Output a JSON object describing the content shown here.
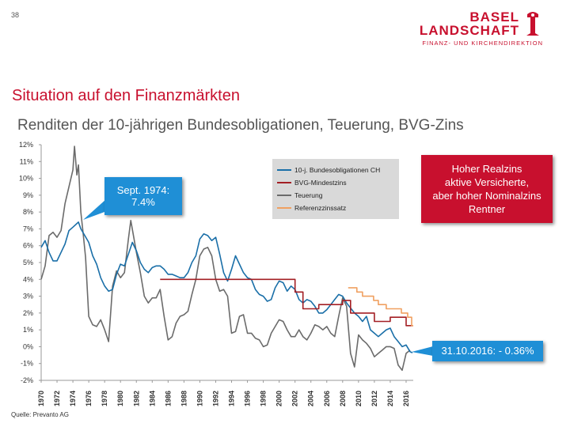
{
  "page_number": "38",
  "logo": {
    "line1": "BASEL",
    "line2": "LANDSCHAFT",
    "sub": "FINANZ- UND KIRCHENDIREKTION"
  },
  "slide_title": "Situation auf den Finanzmärkten",
  "source": "Quelle: Prevanto AG",
  "colors": {
    "brand_red": "#c8102e",
    "callout_blue": "#1f8fd6",
    "bond": "#1a6fa8",
    "bvg": "#a31f24",
    "inflation": "#6b6b6b",
    "reference": "#f0a060"
  },
  "callouts": {
    "sept_line1": "Sept. 1974:",
    "sept_line2": "7.4%",
    "real_lines": [
      "Hoher Realzins",
      "aktive Versicherte,",
      "aber hoher Nominalzins",
      "Rentner"
    ],
    "date": "31.10.2016: - 0.36%"
  },
  "chart_data": {
    "type": "line",
    "title": "Renditen der 10-jährigen Bundesobligationen, Teuerung, BVG-Zins",
    "ylim": [
      -2,
      12
    ],
    "xlim": [
      1970,
      2016.9
    ],
    "y_ticks": [
      "12%",
      "11%",
      "10%",
      "9%",
      "8%",
      "7%",
      "6%",
      "5%",
      "4%",
      "3%",
      "2%",
      "1%",
      "0%",
      "-1%",
      "-2%"
    ],
    "x_ticks": [
      "1970",
      "1972",
      "1974",
      "1976",
      "1978",
      "1980",
      "1982",
      "1984",
      "1986",
      "1988",
      "1990",
      "1992",
      "1994",
      "1996",
      "1998",
      "2000",
      "2002",
      "2004",
      "2006",
      "2008",
      "2010",
      "2012",
      "2014",
      "2016"
    ],
    "legend_position": "top-center",
    "grid": false,
    "series": [
      {
        "name": "10-j. Bundesobligationen CH",
        "x": [
          1970,
          1970.5,
          1971,
          1971.5,
          1972,
          1972.5,
          1973,
          1973.5,
          1974,
          1974.7,
          1975,
          1975.5,
          1976,
          1976.5,
          1977,
          1977.5,
          1978,
          1978.5,
          1979,
          1979.5,
          1980,
          1980.5,
          1981,
          1981.5,
          1982,
          1982.5,
          1983,
          1983.5,
          1984,
          1984.5,
          1985,
          1985.5,
          1986,
          1986.5,
          1987,
          1987.5,
          1988,
          1988.5,
          1989,
          1989.5,
          1990,
          1990.5,
          1991,
          1991.5,
          1992,
          1992.5,
          1993,
          1993.5,
          1994,
          1994.5,
          1995,
          1995.5,
          1996,
          1996.5,
          1997,
          1997.5,
          1998,
          1998.5,
          1999,
          1999.5,
          2000,
          2000.5,
          2001,
          2001.5,
          2002,
          2002.5,
          2003,
          2003.5,
          2004,
          2004.5,
          2005,
          2005.5,
          2006,
          2006.5,
          2007,
          2007.5,
          2008,
          2008.5,
          2009,
          2009.5,
          2010,
          2010.5,
          2011,
          2011.5,
          2012,
          2012.5,
          2013,
          2013.5,
          2014,
          2014.5,
          2015,
          2015.5,
          2016,
          2016.5,
          2016.8
        ],
        "y": [
          5.9,
          6.3,
          5.6,
          5.1,
          5.1,
          5.6,
          6.1,
          6.9,
          7.1,
          7.4,
          7.0,
          6.6,
          6.2,
          5.4,
          4.9,
          4.1,
          3.6,
          3.3,
          3.4,
          4.3,
          4.9,
          4.8,
          5.5,
          6.2,
          5.7,
          5.0,
          4.6,
          4.4,
          4.7,
          4.8,
          4.8,
          4.6,
          4.3,
          4.3,
          4.2,
          4.1,
          4.1,
          4.4,
          5.0,
          5.4,
          6.4,
          6.7,
          6.6,
          6.3,
          6.5,
          5.5,
          4.4,
          3.9,
          4.6,
          5.4,
          4.9,
          4.4,
          4.1,
          4.0,
          3.4,
          3.1,
          3.0,
          2.7,
          2.8,
          3.5,
          3.9,
          3.8,
          3.3,
          3.6,
          3.4,
          2.8,
          2.6,
          2.8,
          2.7,
          2.4,
          2.0,
          2.0,
          2.2,
          2.5,
          2.8,
          3.1,
          3.0,
          2.6,
          2.3,
          2.0,
          1.8,
          1.5,
          1.8,
          1.0,
          0.8,
          0.6,
          0.8,
          1.0,
          1.1,
          0.6,
          0.3,
          0.0,
          0.1,
          -0.3,
          -0.36
        ]
      },
      {
        "name": "BVG-Mindestzins",
        "x": [
          1985,
          2002,
          2002,
          2003,
          2003,
          2005,
          2005,
          2008,
          2008,
          2009,
          2009,
          2012,
          2012,
          2014,
          2014,
          2016,
          2016,
          2016.9
        ],
        "y": [
          4.0,
          4.0,
          3.25,
          3.25,
          2.25,
          2.25,
          2.5,
          2.5,
          2.75,
          2.75,
          2.0,
          2.0,
          1.5,
          1.5,
          1.75,
          1.75,
          1.25,
          1.25
        ]
      },
      {
        "name": "Teuerung",
        "x": [
          1970,
          1970.5,
          1971,
          1971.5,
          1972,
          1972.5,
          1973,
          1973.5,
          1974,
          1974.2,
          1974.5,
          1974.7,
          1975,
          1975.3,
          1975.6,
          1976,
          1976.5,
          1977,
          1977.5,
          1978,
          1978.5,
          1979,
          1979.5,
          1980,
          1980.5,
          1981,
          1981.3,
          1981.6,
          1982,
          1982.5,
          1983,
          1983.5,
          1984,
          1984.5,
          1985,
          1985.5,
          1986,
          1986.5,
          1987,
          1987.5,
          1988,
          1988.5,
          1989,
          1989.5,
          1990,
          1990.5,
          1991,
          1991.5,
          1992,
          1992.5,
          1993,
          1993.5,
          1994,
          1994.5,
          1995,
          1995.5,
          1996,
          1996.5,
          1997,
          1997.5,
          1998,
          1998.5,
          1999,
          1999.5,
          2000,
          2000.5,
          2001,
          2001.5,
          2002,
          2002.5,
          2003,
          2003.5,
          2004,
          2004.5,
          2005,
          2005.5,
          2006,
          2006.5,
          2007,
          2007.5,
          2008,
          2008.5,
          2009,
          2009.5,
          2010,
          2010.5,
          2011,
          2011.5,
          2012,
          2012.5,
          2013,
          2013.5,
          2014,
          2014.5,
          2015,
          2015.5,
          2016,
          2016.5
        ],
        "y": [
          4.0,
          4.8,
          6.6,
          6.8,
          6.5,
          6.9,
          8.5,
          9.5,
          10.5,
          11.9,
          10.2,
          10.8,
          8.0,
          6.7,
          5.3,
          1.8,
          1.3,
          1.2,
          1.6,
          1.0,
          0.3,
          3.6,
          4.5,
          4.1,
          4.4,
          6.4,
          7.5,
          6.7,
          5.6,
          4.4,
          3.0,
          2.6,
          2.9,
          2.9,
          3.4,
          1.8,
          0.4,
          0.6,
          1.4,
          1.8,
          1.9,
          2.1,
          3.1,
          4.0,
          5.4,
          5.8,
          5.9,
          5.4,
          4.0,
          3.3,
          3.4,
          3.0,
          0.8,
          0.9,
          1.8,
          1.9,
          0.8,
          0.8,
          0.5,
          0.4,
          0.0,
          0.1,
          0.8,
          1.2,
          1.6,
          1.5,
          1.0,
          0.6,
          0.6,
          1.0,
          0.6,
          0.4,
          0.8,
          1.3,
          1.2,
          1.0,
          1.2,
          0.8,
          0.6,
          1.8,
          2.9,
          2.4,
          -0.4,
          -1.2,
          0.7,
          0.4,
          0.2,
          -0.1,
          -0.6,
          -0.4,
          -0.2,
          0.0,
          0.0,
          -0.1,
          -1.1,
          -1.4,
          -0.4,
          -0.2
        ]
      },
      {
        "name": "Referenzzinssatz",
        "x": [
          2008.7,
          2009.8,
          2009.8,
          2010.5,
          2010.5,
          2011.9,
          2011.9,
          2012.5,
          2012.5,
          2013.5,
          2013.5,
          2015.4,
          2015.4,
          2016.2,
          2016.2,
          2016.7,
          2016.7,
          2016.9
        ],
        "y": [
          3.5,
          3.5,
          3.25,
          3.25,
          3.0,
          3.0,
          2.75,
          2.75,
          2.5,
          2.5,
          2.25,
          2.25,
          2.0,
          2.0,
          1.75,
          1.75,
          1.25,
          1.25
        ]
      }
    ]
  }
}
